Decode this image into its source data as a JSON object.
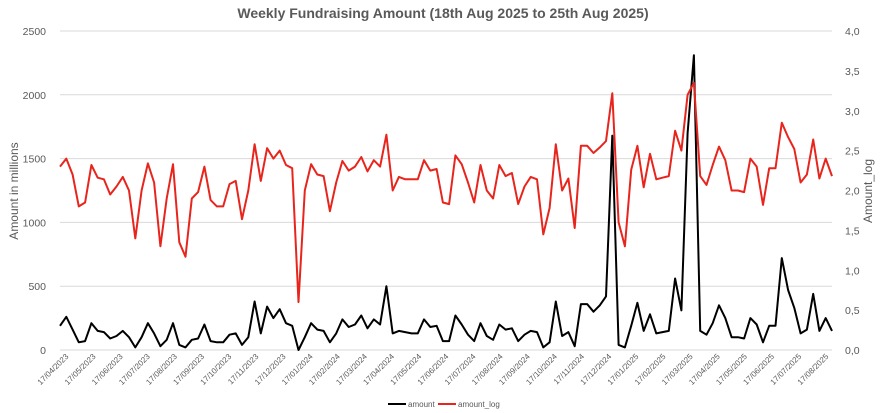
{
  "chart_data": {
    "type": "line",
    "title": "Weekly Fundraising Amount (18th Aug 2025 to 25th Aug 2025)",
    "ylabel": "Amount in millions",
    "y2label": "Amount_log",
    "ylim": [
      0,
      2500
    ],
    "y2lim": [
      0,
      4.0
    ],
    "yticks": [
      "0",
      "500",
      "1000",
      "1500",
      "2000",
      "2500"
    ],
    "y2ticks": [
      "0,0",
      "0,5",
      "1,0",
      "1,5",
      "2,0",
      "2,5",
      "3,0",
      "3,5",
      "4,0"
    ],
    "xtick_labels": [
      "17/04/2023",
      "17/05/2023",
      "17/06/2023",
      "17/07/2023",
      "17/08/2023",
      "17/09/2023",
      "17/10/2023",
      "17/11/2023",
      "17/12/2023",
      "17/01/2024",
      "17/02/2024",
      "17/03/2024",
      "17/04/2024",
      "17/05/2024",
      "17/06/2024",
      "17/07/2024",
      "17/08/2024",
      "17/09/2024",
      "17/10/2024",
      "17/11/2024",
      "17/12/2024",
      "17/01/2025",
      "17/02/2025",
      "17/03/2025",
      "17/04/2025",
      "17/05/2025",
      "17/06/2025",
      "17/07/2025",
      "17/08/2025"
    ],
    "x_start": "17/04/2023",
    "x_end": "25/08/2025",
    "grid": "horizontal",
    "legend_position": "bottom",
    "series": [
      {
        "name": "amount",
        "axis": "left",
        "color": "#000000",
        "values": [
          190,
          260,
          160,
          60,
          70,
          210,
          150,
          140,
          90,
          110,
          150,
          100,
          20,
          100,
          210,
          130,
          30,
          80,
          210,
          40,
          20,
          80,
          90,
          200,
          70,
          60,
          60,
          120,
          130,
          40,
          100,
          380,
          130,
          340,
          250,
          320,
          210,
          190,
          0,
          100,
          210,
          160,
          150,
          60,
          130,
          240,
          180,
          200,
          270,
          170,
          240,
          200,
          500,
          130,
          150,
          140,
          130,
          130,
          240,
          180,
          190,
          70,
          70,
          270,
          200,
          120,
          70,
          210,
          110,
          80,
          200,
          160,
          170,
          70,
          120,
          150,
          140,
          20,
          60,
          380,
          110,
          140,
          30,
          360,
          360,
          300,
          350,
          420,
          1680,
          40,
          20,
          190,
          370,
          150,
          280,
          130,
          140,
          150,
          560,
          310,
          1700,
          2310,
          150,
          120,
          210,
          350,
          250,
          100,
          100,
          90,
          250,
          200,
          60,
          190,
          190,
          720,
          470,
          330,
          130,
          160,
          440,
          150,
          250,
          150
        ]
      },
      {
        "name": "amount_log",
        "axis": "right",
        "color": "#e8251d",
        "values": [
          2.3,
          2.4,
          2.2,
          1.8,
          1.85,
          2.32,
          2.16,
          2.14,
          1.95,
          2.05,
          2.17,
          2.0,
          1.4,
          2.0,
          2.34,
          2.1,
          1.3,
          1.9,
          2.33,
          1.35,
          1.17,
          1.9,
          1.98,
          2.3,
          1.88,
          1.8,
          1.8,
          2.08,
          2.12,
          1.64,
          2.0,
          2.58,
          2.12,
          2.53,
          2.4,
          2.5,
          2.32,
          2.28,
          0.6,
          2.0,
          2.33,
          2.2,
          2.18,
          1.74,
          2.1,
          2.37,
          2.25,
          2.3,
          2.42,
          2.24,
          2.38,
          2.3,
          2.7,
          2.0,
          2.17,
          2.14,
          2.14,
          2.14,
          2.38,
          2.25,
          2.27,
          1.85,
          1.83,
          2.44,
          2.33,
          2.1,
          1.85,
          2.32,
          2.0,
          1.9,
          2.32,
          2.18,
          2.22,
          1.83,
          2.05,
          2.17,
          2.14,
          1.45,
          1.78,
          2.58,
          2.0,
          2.15,
          1.53,
          2.56,
          2.56,
          2.47,
          2.54,
          2.62,
          3.22,
          1.6,
          1.3,
          2.26,
          2.56,
          2.04,
          2.46,
          2.14,
          2.16,
          2.18,
          2.75,
          2.5,
          3.2,
          3.35,
          2.18,
          2.07,
          2.32,
          2.55,
          2.38,
          2.0,
          2.0,
          1.98,
          2.4,
          2.3,
          1.82,
          2.28,
          2.28,
          2.85,
          2.67,
          2.52,
          2.1,
          2.2,
          2.64,
          2.15,
          2.4,
          2.18
        ]
      }
    ]
  }
}
